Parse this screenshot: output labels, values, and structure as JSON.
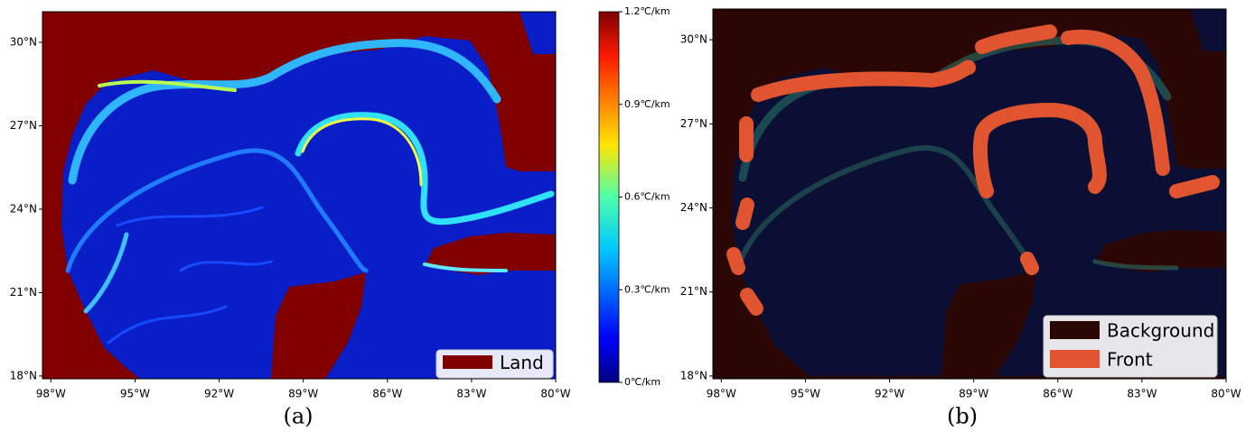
{
  "panels": [
    {
      "caption": "(a)",
      "xlim": [
        -98.3,
        -80
      ],
      "ylim": [
        17.9,
        31.1
      ],
      "xticks": [
        {
          "value": -98,
          "label": "98°W"
        },
        {
          "value": -95,
          "label": "95°W"
        },
        {
          "value": -92,
          "label": "92°W"
        },
        {
          "value": -89,
          "label": "89°W"
        },
        {
          "value": -86,
          "label": "86°W"
        },
        {
          "value": -83,
          "label": "83°W"
        },
        {
          "value": -80,
          "label": "80°W"
        }
      ],
      "yticks": [
        {
          "value": 18,
          "label": "18°N"
        },
        {
          "value": 21,
          "label": "21°N"
        },
        {
          "value": 24,
          "label": "24°N"
        },
        {
          "value": 27,
          "label": "27°N"
        },
        {
          "value": 30,
          "label": "30°N"
        }
      ],
      "legend": [
        {
          "label": "Land",
          "color": "#800000"
        }
      ]
    },
    {
      "caption": "(b)",
      "xlim": [
        -98.3,
        -80
      ],
      "ylim": [
        17.9,
        31.1
      ],
      "xticks": [
        {
          "value": -98,
          "label": "98°W"
        },
        {
          "value": -95,
          "label": "95°W"
        },
        {
          "value": -92,
          "label": "92°W"
        },
        {
          "value": -89,
          "label": "89°W"
        },
        {
          "value": -86,
          "label": "86°W"
        },
        {
          "value": -83,
          "label": "83°W"
        },
        {
          "value": -80,
          "label": "80°W"
        }
      ],
      "yticks": [
        {
          "value": 18,
          "label": "18°N"
        },
        {
          "value": 21,
          "label": "21°N"
        },
        {
          "value": 24,
          "label": "24°N"
        },
        {
          "value": 27,
          "label": "27°N"
        },
        {
          "value": 30,
          "label": "30°N"
        }
      ],
      "legend": [
        {
          "label": "Background",
          "color": "#2a0604"
        },
        {
          "label": "Front",
          "color": "#e0552f"
        }
      ]
    }
  ],
  "colorbar": {
    "lim": [
      0,
      1.2
    ],
    "ticks": [
      {
        "value": 0,
        "label": "0℃/km"
      },
      {
        "value": 0.3,
        "label": "0.3℃/km"
      },
      {
        "value": 0.6,
        "label": "0.6℃/km"
      },
      {
        "value": 0.9,
        "label": "0.9℃/km"
      },
      {
        "value": 1.2,
        "label": "1.2℃/km"
      }
    ]
  }
}
